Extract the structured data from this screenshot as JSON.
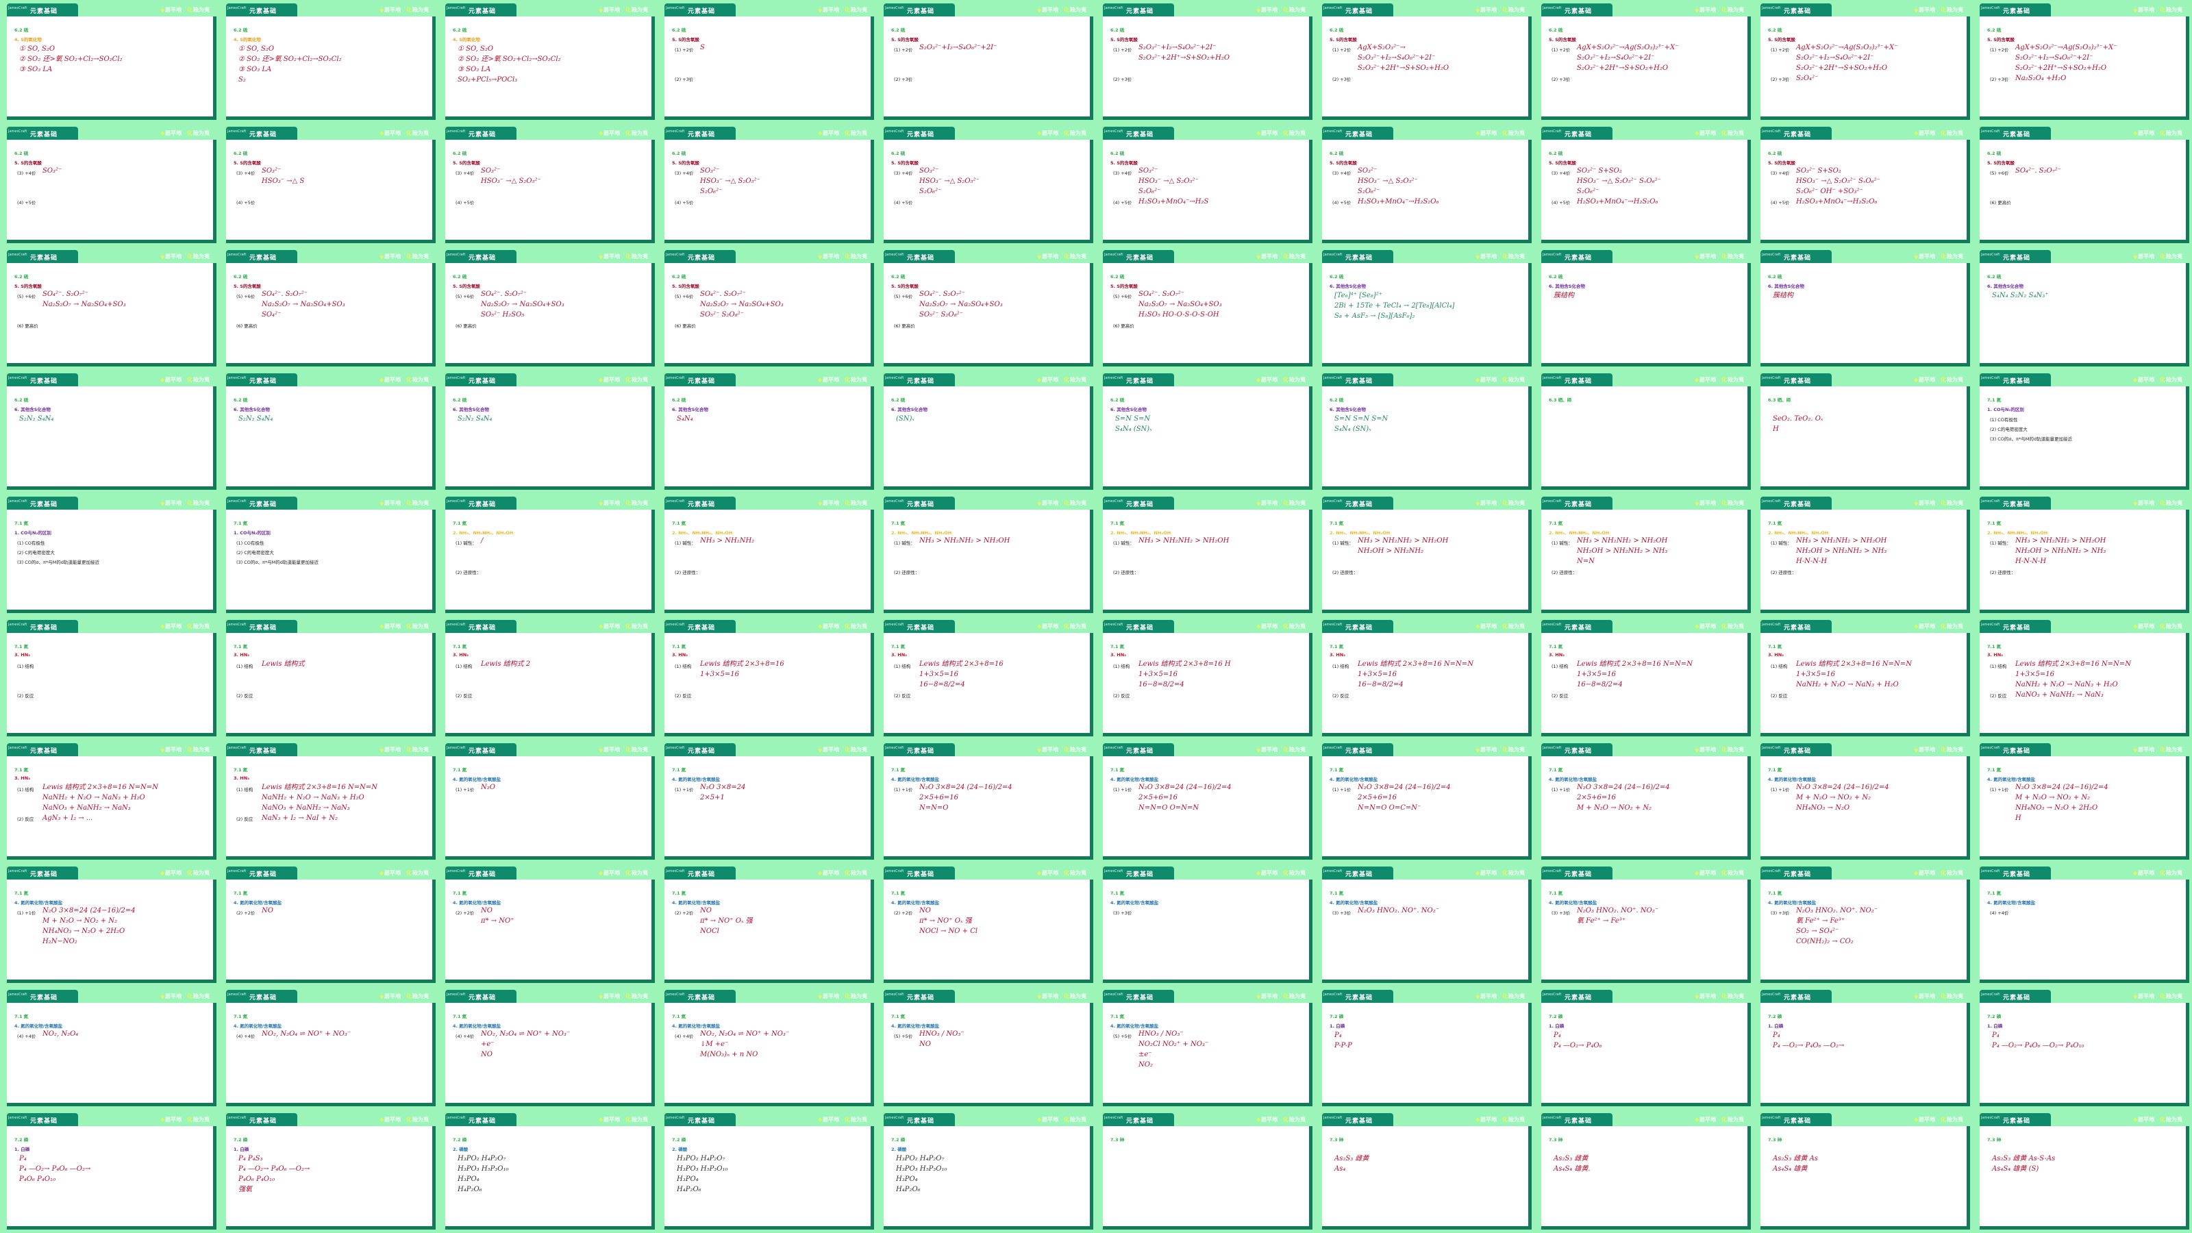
{
  "header": {
    "brand": "JamesCraft",
    "title": "元素基础",
    "motto": [
      {
        "mark": "◆",
        "text": "层平地"
      },
      {
        "mark": "化",
        "text": "险为夷"
      }
    ]
  },
  "colors": {
    "background": "#9cf5b8",
    "tab": "#0f8a6a",
    "border": "#137a5a",
    "section": "#2db54a",
    "ink_red": "#b0102e",
    "ink_green": "#1f8a5a"
  },
  "templates": {
    "A": {
      "section": "6.2 硫",
      "title": "4. S的氧化物",
      "title_color": "#f0a020",
      "items": []
    },
    "B": {
      "section": "6.2 硫",
      "title": "5. S的含氧酸",
      "title_color": "#a01030",
      "items": [
        "(1) +2价",
        "(2) +3价"
      ]
    },
    "C": {
      "section": "6.2 硫",
      "title": "5. S的含氧酸",
      "title_color": "#a01030",
      "items": [
        "(3) +4价",
        "(4) +5价"
      ]
    },
    "D": {
      "section": "6.2 硫",
      "title": "5. S的含氧酸",
      "title_color": "#a01030",
      "items": [
        "(5) +6价",
        "(6) 更高价"
      ]
    },
    "E": {
      "section": "6.2 硫",
      "title": "6. 其他含S化合物",
      "title_color": "#7030a0",
      "items": []
    },
    "F": {
      "section": "6.3 硒、碲",
      "title": "",
      "title_color": "#7030a0",
      "items": []
    },
    "G": {
      "section": "7.1 氮",
      "title": "1. CO与N₂的区别",
      "title_color": "#7030a0",
      "items": [
        "(1) CO有极性",
        "(2) C的电荷密度大",
        "(3) CO的σ、π*与M的d轨道能量更加接近"
      ]
    },
    "H": {
      "section": "7.1 氮",
      "title": "2. NH₃、NH₂NH₂、NH₂OH",
      "title_color": "#e8b830",
      "items": [
        "(1) 碱性：",
        "(2) 还原性："
      ]
    },
    "I": {
      "section": "7.1 氮",
      "title": "3. HN₃",
      "title_color": "#c0102a",
      "items": [
        "(1) 结构",
        "(2) 反应"
      ]
    },
    "J": {
      "section": "7.1 氮",
      "title": "4. 氮的氧化物/含氧酸盐",
      "title_color": "#2a7ab8",
      "items": [
        "(1) +1价"
      ]
    },
    "K": {
      "section": "7.1 氮",
      "title": "4. 氮的氧化物/含氧酸盐",
      "title_color": "#2a7ab8",
      "items": [
        "(2) +2价"
      ]
    },
    "L": {
      "section": "7.1 氮",
      "title": "4. 氮的氧化物/含氧酸盐",
      "title_color": "#2a7ab8",
      "items": [
        "(3) +3价"
      ]
    },
    "M": {
      "section": "7.1 氮",
      "title": "4. 氮的氧化物/含氧酸盐",
      "title_color": "#2a7ab8",
      "items": [
        "(4) +4价"
      ]
    },
    "N": {
      "section": "7.1 氮",
      "title": "4. 氮的氧化物/含氧酸盐",
      "title_color": "#2a7ab8",
      "items": [
        "(5) +5价"
      ]
    },
    "O": {
      "section": "7.2 磷",
      "title": "1. 白磷",
      "title_color": "#7030a0",
      "items": []
    },
    "P": {
      "section": "7.2 磷",
      "title": "2. 磷酸",
      "title_color": "#2a7ab8",
      "items": []
    },
    "Q": {
      "section": "7.3 砷",
      "title": "",
      "title_color": "#7030a0",
      "items": []
    }
  },
  "slides": [
    {
      "t": "A",
      "notes": [
        "① SO, S₂O",
        "② SO₂ 还>氧  SO₂+Cl₂→SO₂Cl₂",
        "③ SO₃ LA"
      ]
    },
    {
      "t": "A",
      "notes": [
        "① SO, S₂O",
        "② SO₂ 还>氧  SO₂+Cl₂→SO₂Cl₂",
        "③ SO₃ LA",
        "S₂"
      ]
    },
    {
      "t": "A",
      "notes": [
        "① SO, S₂O",
        "② SO₂ 还>氧  SO₂+Cl₂→SO₂Cl₂",
        "③ SO₃ LA",
        "SO₂+PCl₅→POCl₃"
      ]
    },
    {
      "t": "B",
      "notes": [
        "S"
      ]
    },
    {
      "t": "B",
      "notes": [
        "S₂O₃²⁻+I₂→S₄O₆²⁻+2I⁻"
      ]
    },
    {
      "t": "B",
      "notes": [
        "S₂O₃²⁻+I₂→S₄O₆²⁻+2I⁻",
        "S₂O₃²⁻+2H⁺→S+SO₂+H₂O"
      ]
    },
    {
      "t": "B",
      "notes": [
        "AgX+S₂O₃²⁻→",
        "S₂O₃²⁻+I₂→S₄O₆²⁻+2I⁻",
        "S₂O₃²⁻+2H⁺→S+SO₂+H₂O"
      ]
    },
    {
      "t": "B",
      "notes": [
        "AgX+S₂O₃²⁻→Ag(S₂O₃)₂³⁻+X⁻",
        "S₂O₃²⁻+I₂→S₄O₆²⁻+2I⁻",
        "S₂O₃²⁻+2H⁺→S+SO₂+H₂O"
      ]
    },
    {
      "t": "B",
      "notes": [
        "AgX+S₂O₃²⁻→Ag(S₂O₃)₂³⁻+X⁻",
        "S₂O₃²⁻+I₂→S₄O₆²⁻+2I⁻",
        "S₂O₃²⁻+2H⁺→S+SO₂+H₂O",
        "S₂O₄²⁻"
      ]
    },
    {
      "t": "B",
      "notes": [
        "AgX+S₂O₃²⁻→Ag(S₂O₃)₂³⁻+X⁻",
        "S₂O₃²⁻+I₂→S₄O₆²⁻+2I⁻",
        "S₂O₃²⁻+2H⁺→S+SO₂+H₂O",
        "Na₂S₂O₄ +H₂O"
      ]
    },
    {
      "t": "C",
      "notes": [
        "SO₃²⁻"
      ]
    },
    {
      "t": "C",
      "notes": [
        "SO₃²⁻",
        "HSO₃⁻ →△ S"
      ]
    },
    {
      "t": "C",
      "notes": [
        "SO₃²⁻",
        "HSO₃⁻ →△ S₂O₅²⁻"
      ]
    },
    {
      "t": "C",
      "notes": [
        "SO₃²⁻",
        "HSO₃⁻ →△ S₂O₅²⁻",
        "S₂O₆²⁻"
      ]
    },
    {
      "t": "C",
      "notes": [
        "SO₃²⁻",
        "HSO₃⁻ →△ S₂O₅²⁻",
        "S₂O₆²⁻"
      ]
    },
    {
      "t": "C",
      "notes": [
        "SO₃²⁻",
        "HSO₃⁻ →△ S₂O₅²⁻",
        "S₂O₆²⁻",
        "H₂SO₃+MnO₄⁻→H₂S"
      ]
    },
    {
      "t": "C",
      "notes": [
        "SO₃²⁻",
        "HSO₃⁻ →△ S₂O₅²⁻",
        "S₂O₆²⁻",
        "H₂SO₃+MnO₄⁻→H₂S₂O₆"
      ]
    },
    {
      "t": "C",
      "notes": [
        "SO₃²⁻        S+SO₂",
        "HSO₃⁻ →△ S₂O₅²⁻  SₓO₆²⁻",
        "S₂O₆²⁻",
        "H₂SO₃+MnO₄⁻→H₂S₂O₆"
      ]
    },
    {
      "t": "C",
      "notes": [
        "SO₃²⁻        S+SO₂",
        "HSO₃⁻ →△ S₂O₅²⁻  SₓO₆²⁻",
        "S₂O₆²⁻   OH⁻ +SO₃²⁻",
        "H₂SO₃+MnO₄⁻→H₂S₂O₆"
      ]
    },
    {
      "t": "D",
      "notes": [
        "SO₄²⁻. S₂O₇²⁻"
      ]
    },
    {
      "t": "D",
      "notes": [
        "SO₄²⁻. S₂O₇²⁻",
        "Na₂S₂O₇ → Na₂SO₄+SO₃"
      ]
    },
    {
      "t": "D",
      "notes": [
        "SO₄²⁻. S₂O₇²⁻",
        "Na₂S₂O₇ → Na₂SO₄+SO₃",
        "SO₄²⁻"
      ]
    },
    {
      "t": "D",
      "notes": [
        "SO₄²⁻. S₂O₇²⁻",
        "Na₂S₂O₇ → Na₂SO₄+SO₃",
        "SO₅²⁻  H₂SO₅"
      ]
    },
    {
      "t": "D",
      "notes": [
        "SO₄²⁻. S₂O₇²⁻",
        "Na₂S₂O₇ → Na₂SO₄+SO₃",
        "SO₅²⁻  S₂O₈²⁻"
      ]
    },
    {
      "t": "D",
      "notes": [
        "SO₄²⁻. S₂O₇²⁻",
        "Na₂S₂O₇ → Na₂SO₄+SO₃",
        "SO₅²⁻  S₂O₈²⁻"
      ]
    },
    {
      "t": "D",
      "notes": [
        "SO₄²⁻. S₂O₇²⁻",
        "Na₂S₂O₇ → Na₂SO₄+SO₃",
        "H₂SO₅   HO-O-S-O-S-OH"
      ]
    },
    {
      "t": "E",
      "ink": "green",
      "notes": [
        "[Te₆]⁴⁺  [Se₈]²⁺",
        "2Bi + 15Te + TeCl₄ → 2[Te₈][AlCl₄]",
        "S₈ + AsF₅ → [S₈][AsF₆]₂"
      ]
    },
    {
      "t": "E",
      "ink": "red",
      "notes": [
        "簇结构"
      ]
    },
    {
      "t": "E",
      "ink": "red",
      "notes": [
        "簇结构"
      ]
    },
    {
      "t": "E",
      "ink": "green",
      "notes": [
        "S₄N₄  S₂N₂  S₄N₃⁺"
      ]
    },
    {
      "t": "E",
      "ink": "green",
      "notes": [
        "S₂N₂   S₄N₄"
      ]
    },
    {
      "t": "E",
      "ink": "green",
      "notes": [
        "S₂N₂   S₄N₄"
      ]
    },
    {
      "t": "E",
      "ink": "green",
      "notes": [
        "S₂N₂   S₄N₄"
      ]
    },
    {
      "t": "E",
      "ink": "red",
      "notes": [
        "S₄N₄"
      ]
    },
    {
      "t": "E",
      "ink": "green",
      "notes": [
        "(SN)ₓ"
      ]
    },
    {
      "t": "E",
      "ink": "green",
      "notes": [
        "S=N  S=N",
        "S₄N₄  (SN)ₓ"
      ]
    },
    {
      "t": "E",
      "ink": "green",
      "notes": [
        "S=N  S=N  S=N",
        "S₄N₄  (SN)ₓ"
      ]
    },
    {
      "t": "F",
      "notes": []
    },
    {
      "t": "F",
      "notes": [
        "SeO₂. TeO₂.  Oₓ",
        "H"
      ]
    },
    {
      "t": "G",
      "notes": []
    },
    {
      "t": "G",
      "notes": []
    },
    {
      "t": "G",
      "notes": []
    },
    {
      "t": "H",
      "notes": [
        "/"
      ]
    },
    {
      "t": "H",
      "notes": [
        "NH₃ > NH₂NH₂"
      ]
    },
    {
      "t": "H",
      "notes": [
        "NH₃ > NH₂NH₂ > NH₂OH"
      ]
    },
    {
      "t": "H",
      "notes": [
        "NH₃ > NH₂NH₂ > NH₂OH"
      ]
    },
    {
      "t": "H",
      "notes": [
        "NH₃ > NH₂NH₂ > NH₂OH",
        "NH₂OH > NH₂NH₂"
      ]
    },
    {
      "t": "H",
      "notes": [
        "NH₃ > NH₂NH₂ > NH₂OH",
        "NH₂OH > NH₂NH₂ > NH₃",
        "N=N"
      ]
    },
    {
      "t": "H",
      "notes": [
        "NH₃ > NH₂NH₂ > NH₂OH",
        "NH₂OH > NH₂NH₂ > NH₃",
        "H-N-N-H"
      ]
    },
    {
      "t": "H",
      "notes": [
        "NH₃ > NH₂NH₂ > NH₂OH",
        "NH₂OH > NH₂NH₂ > NH₃",
        "H-N-N-H"
      ]
    },
    {
      "t": "I",
      "notes": []
    },
    {
      "t": "I",
      "notes": [
        "Lewis 结构式"
      ]
    },
    {
      "t": "I",
      "notes": [
        "Lewis 结构式  2"
      ]
    },
    {
      "t": "I",
      "notes": [
        "Lewis 结构式  2×3+8=16",
        "1+3×5=16"
      ]
    },
    {
      "t": "I",
      "notes": [
        "Lewis 结构式  2×3+8=16",
        "1+3×5=16",
        "16−8=8/2=4"
      ]
    },
    {
      "t": "I",
      "notes": [
        "Lewis 结构式  2×3+8=16   H",
        "1+3×5=16",
        "16−8=8/2=4"
      ]
    },
    {
      "t": "I",
      "notes": [
        "Lewis 结构式  2×3+8=16   N=N=N",
        "1+3×5=16",
        "16−8=8/2=4"
      ]
    },
    {
      "t": "I",
      "notes": [
        "Lewis 结构式  2×3+8=16   N=N=N",
        "1+3×5=16",
        "16−8=8/2=4"
      ]
    },
    {
      "t": "I",
      "notes": [
        "Lewis 结构式  2×3+8=16   N=N=N",
        "1+3×5=16",
        "NaNH₂ + N₂O → NaN₃ + H₂O"
      ]
    },
    {
      "t": "I",
      "notes": [
        "Lewis 结构式  2×3+8=16   N=N=N",
        "1+3×5=16",
        "NaNH₂ + N₂O → NaN₃ + H₂O",
        "NaNO₃ + NaNH₂ → NaN₃"
      ]
    },
    {
      "t": "I",
      "notes": [
        "Lewis 结构式  2×3+8=16   N=N=N",
        "NaNH₂ + N₂O → NaN₃ + H₂O",
        "NaNO₃ + NaNH₂ → NaN₃",
        "AgN₃ + I₂ → ..."
      ]
    },
    {
      "t": "I",
      "notes": [
        "Lewis 结构式  2×3+8=16   N=N=N",
        "NaNH₂ + N₂O → NaN₃ + H₂O",
        "NaNO₃ + NaNH₂ → NaN₃",
        "NaN₃ + I₂ → NaI + N₂"
      ]
    },
    {
      "t": "J",
      "notes": [
        "N₂O"
      ]
    },
    {
      "t": "J",
      "notes": [
        "N₂O  3×8=24",
        "2×5+1"
      ]
    },
    {
      "t": "J",
      "notes": [
        "N₂O  3×8=24   (24−16)/2=4",
        "2×5+6=16",
        "N=N=O"
      ]
    },
    {
      "t": "J",
      "notes": [
        "N₂O  3×8=24   (24−16)/2=4",
        "2×5+6=16",
        "N=N=O  O=N=N"
      ]
    },
    {
      "t": "J",
      "notes": [
        "N₂O  3×8=24   (24−16)/2=4",
        "2×5+6=16",
        "N=N=O  O=C=N⁻"
      ]
    },
    {
      "t": "J",
      "notes": [
        "N₂O  3×8=24   (24−16)/2=4",
        "2×5+6=16",
        "M + N₂O →  NO₂ + N₂"
      ]
    },
    {
      "t": "J",
      "notes": [
        "N₂O  3×8=24   (24−16)/2=4",
        "M + N₂O → NO₂ + N₂",
        "NH₄NO₃ → N₂O"
      ]
    },
    {
      "t": "J",
      "notes": [
        "N₂O  3×8=24   (24−16)/2=4",
        "M + N₂O → NO₂ + N₂",
        "NH₄NO₃ → N₂O + 2H₂O",
        "H"
      ]
    },
    {
      "t": "J",
      "notes": [
        "N₂O  3×8=24   (24−16)/2=4",
        "M + N₂O → NO₂ + N₂",
        "NH₄NO₃ → N₂O + 2H₂O",
        "H₂N−NO₂"
      ]
    },
    {
      "t": "K",
      "notes": [
        "NO"
      ]
    },
    {
      "t": "K",
      "notes": [
        "NO",
        "π* → NO⁺"
      ]
    },
    {
      "t": "K",
      "notes": [
        "NO",
        "π* → NO⁺  Oₓ 强",
        "NOCl"
      ]
    },
    {
      "t": "K",
      "notes": [
        "NO",
        "π* → NO⁺  Oₓ 强",
        "NOCl → NO + Cl"
      ]
    },
    {
      "t": "L",
      "notes": []
    },
    {
      "t": "L",
      "notes": [
        "N₂O₃  HNO₂.  NO⁺. NO₂⁻"
      ]
    },
    {
      "t": "L",
      "notes": [
        "N₂O₃  HNO₂.  NO⁺. NO₂⁻",
        "氧  Fe²⁺ → Fe³⁺"
      ]
    },
    {
      "t": "L",
      "notes": [
        "N₂O₃  HNO₂.  NO⁺. NO₂⁻",
        "氧  Fe²⁺ → Fe³⁺",
        "SO₂ → SO₄²⁻",
        "CO(NH₂)₂ → CO₂"
      ]
    },
    {
      "t": "M",
      "notes": []
    },
    {
      "t": "M",
      "notes": [
        "NO₂, N₂O₄"
      ]
    },
    {
      "t": "M",
      "notes": [
        "NO₂, N₂O₄ ⇌ NO⁺ + NO₃⁻"
      ]
    },
    {
      "t": "M",
      "notes": [
        "NO₂, N₂O₄ ⇌ NO⁺ + NO₃⁻",
        "+e⁻",
        "NO"
      ]
    },
    {
      "t": "M",
      "notes": [
        "NO₂, N₂O₄ ⇌ NO⁺ + NO₃⁻",
        "↓M    +e⁻",
        "M(NO₃)ₙ + n NO"
      ]
    },
    {
      "t": "N",
      "notes": [
        "HNO₃ / NO₃⁻",
        "NO"
      ]
    },
    {
      "t": "N",
      "notes": [
        "HNO₃ / NO₃⁻",
        "NO₂Cl   NO₂⁺ + NO₃⁻",
        "±e⁻",
        "NO₂"
      ]
    },
    {
      "t": "O",
      "notes": [
        "P₄",
        "P-P-P"
      ]
    },
    {
      "t": "O",
      "notes": [
        "P₄",
        "P₄ —O₂→ P₄O₆"
      ]
    },
    {
      "t": "O",
      "notes": [
        "P₄",
        "P₄ —O₂→ P₄O₆ —O₂→"
      ]
    },
    {
      "t": "O",
      "notes": [
        "P₄",
        "P₄ —O₂→ P₄O₆ —O₂→ P₄O₁₀"
      ]
    },
    {
      "t": "O",
      "notes": [
        "P₄",
        "P₄ —O₂→ P₄O₆ —O₂→",
        "P₄O₆       P₄O₁₀"
      ]
    },
    {
      "t": "O",
      "notes": [
        "P₄            P₄S₃",
        "P₄ —O₂→ P₄O₆ —O₂→",
        "P₄O₆       P₄O₁₀",
        "强氧"
      ]
    },
    {
      "t": "P",
      "ink": "black",
      "notes": [
        "H₃PO₂          H₄P₂O₇",
        "H₃PO₃          H₅P₃O₁₀",
        "H₃PO₄",
        "H₄P₂O₆"
      ]
    },
    {
      "t": "P",
      "ink": "black",
      "notes": [
        "H₃PO₂          H₄P₂O₇",
        "H₃PO₃          H₅P₃O₁₀",
        "H₃PO₄",
        "H₄P₂O₆"
      ]
    },
    {
      "t": "P",
      "ink": "black",
      "notes": [
        "H₃PO₂          H₄P₂O₇",
        "H₃PO₃          H₅P₃O₁₀",
        "H₃PO₄",
        "H₄P₂O₆"
      ]
    },
    {
      "t": "Q",
      "notes": []
    },
    {
      "t": "Q",
      "notes": [
        "As₂S₃ 雌黄",
        "As₄"
      ]
    },
    {
      "t": "Q",
      "notes": [
        "As₂S₃ 雌黄",
        "As₄S₄ 雄黄."
      ]
    },
    {
      "t": "Q",
      "notes": [
        "As₂S₃ 雌黄   As",
        "As₄S₄ 雄黄"
      ]
    },
    {
      "t": "Q",
      "notes": [
        "As₂S₃ 雌黄   As-S-As",
        "As₄S₄ 雄黄  (S)"
      ]
    }
  ]
}
